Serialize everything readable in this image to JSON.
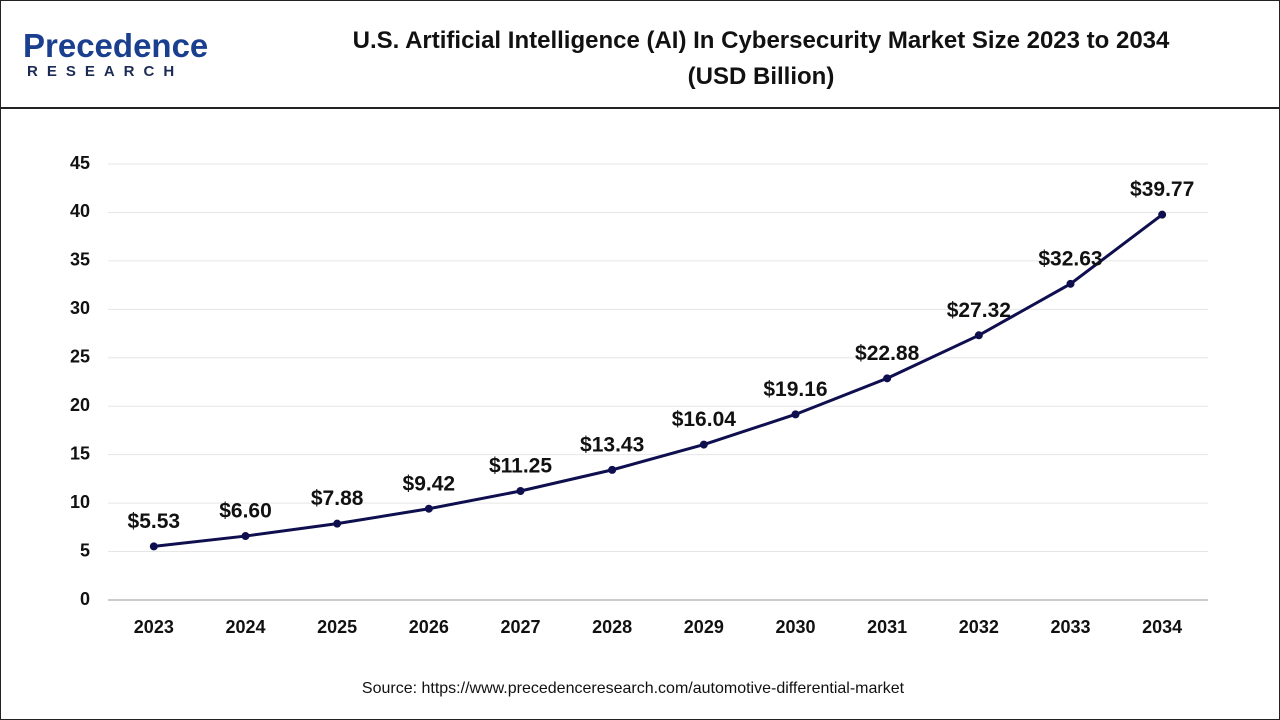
{
  "logo": {
    "name": "Precedence",
    "tagline": "RESEARCH"
  },
  "chart_data": {
    "type": "line",
    "title": "U.S. Artificial Intelligence (AI) In Cybersecurity Market Size 2023 to 2034 (USD Billion)",
    "categories": [
      "2023",
      "2024",
      "2025",
      "2026",
      "2027",
      "2028",
      "2029",
      "2030",
      "2031",
      "2032",
      "2033",
      "2034"
    ],
    "values": [
      5.53,
      6.6,
      7.88,
      9.42,
      11.25,
      13.43,
      16.04,
      19.16,
      22.88,
      27.32,
      32.63,
      39.77
    ],
    "value_labels": [
      "$5.53",
      "$6.60",
      "$7.88",
      "$9.42",
      "$11.25",
      "$13.43",
      "$16.04",
      "$19.16",
      "$22.88",
      "$27.32",
      "$32.63",
      "$39.77"
    ],
    "color": "#0f0f4f",
    "ylim": [
      0,
      45
    ],
    "yticks": [
      0,
      5,
      10,
      15,
      20,
      25,
      30,
      35,
      40,
      45
    ],
    "grid": true,
    "source": "Source: https://www.precedenceresearch.com/automotive-differential-market"
  }
}
